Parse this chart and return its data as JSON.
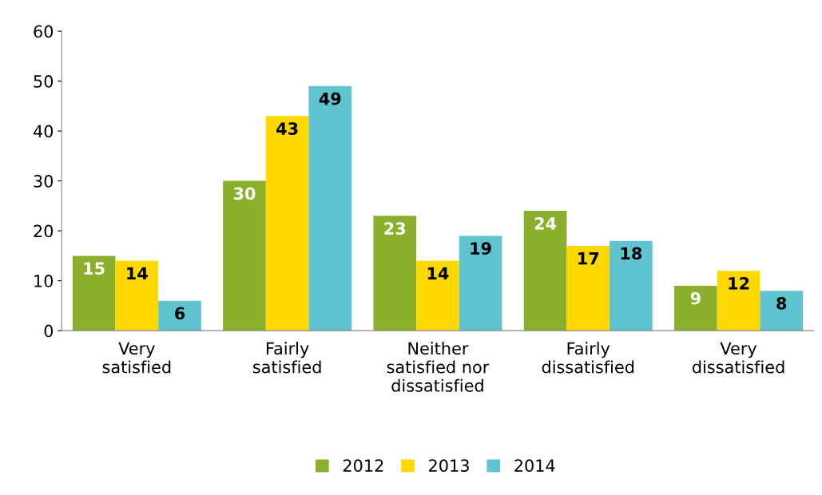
{
  "chart_data": {
    "type": "bar",
    "categories": [
      "Very\nsatisfied",
      "Fairly\nsatisfied",
      "Neither\nsatisfied nor\ndissatisfied",
      "Fairly\ndissatisfied",
      "Very\ndissatisfied"
    ],
    "series": [
      {
        "name": "2012",
        "color": "#8aaf2a",
        "values": [
          15,
          30,
          23,
          24,
          9
        ]
      },
      {
        "name": "2013",
        "color": "#ffd800",
        "values": [
          14,
          43,
          14,
          17,
          12
        ]
      },
      {
        "name": "2014",
        "color": "#5fc3d0",
        "values": [
          6,
          49,
          19,
          18,
          8
        ]
      }
    ],
    "ylim": [
      0,
      60
    ],
    "yticks": [
      0,
      10,
      20,
      30,
      40,
      50,
      60
    ],
    "grid": false,
    "legend": "bottom",
    "data_labels": true
  }
}
